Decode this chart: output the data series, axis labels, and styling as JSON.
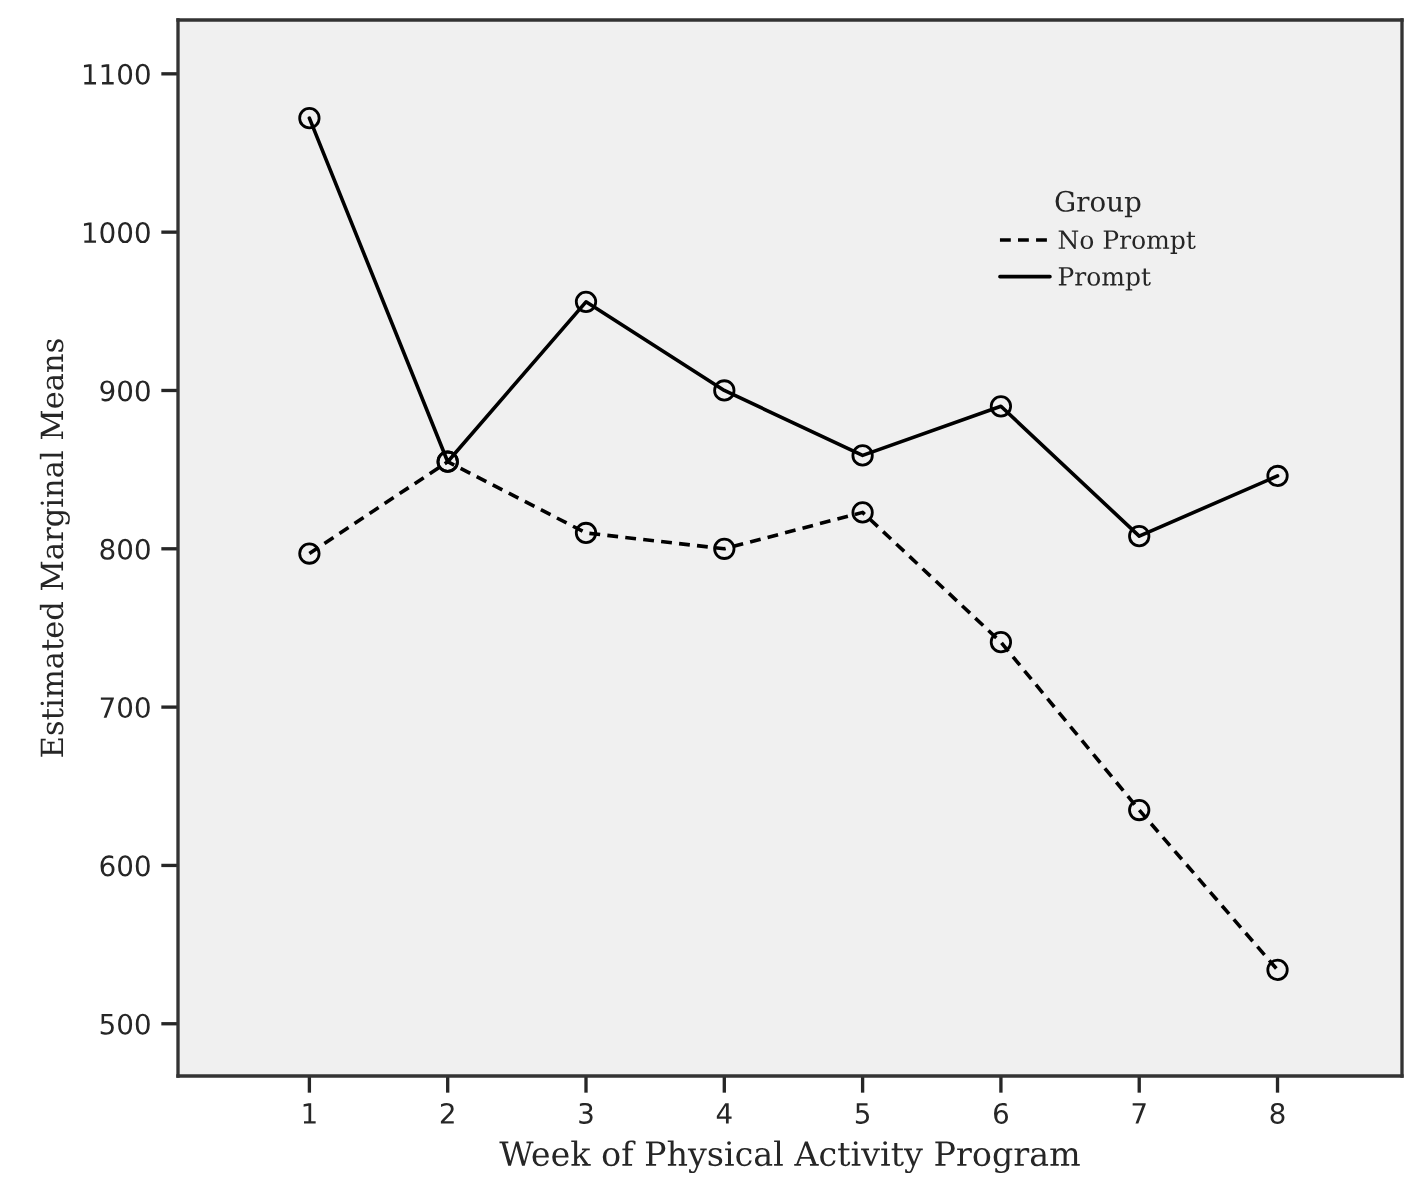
{
  "chart_data": {
    "type": "line",
    "xlabel": "Week of Physical Activity Program",
    "ylabel": "Estimated Marginal Means",
    "legend_title": "Group",
    "x": [
      1,
      2,
      3,
      4,
      5,
      6,
      7,
      8
    ],
    "series": [
      {
        "name": "No Prompt",
        "color": "#000000",
        "line_style": "dashed",
        "values": [
          797,
          855,
          810,
          800,
          823,
          741,
          635,
          534
        ]
      },
      {
        "name": "Prompt",
        "color": "#000000",
        "line_style": "solid",
        "values": [
          1072,
          855,
          956,
          900,
          859,
          890,
          808,
          846
        ]
      }
    ],
    "marker": "circle",
    "legend": "top right",
    "grid": false,
    "xlim": [
      0.05,
      8.9
    ],
    "xticks": [
      1,
      2,
      3,
      4,
      5,
      6,
      7,
      8
    ],
    "ylim": [
      467,
      1134
    ],
    "yticks": [
      500,
      600,
      700,
      800,
      900,
      1000,
      1100
    ]
  }
}
